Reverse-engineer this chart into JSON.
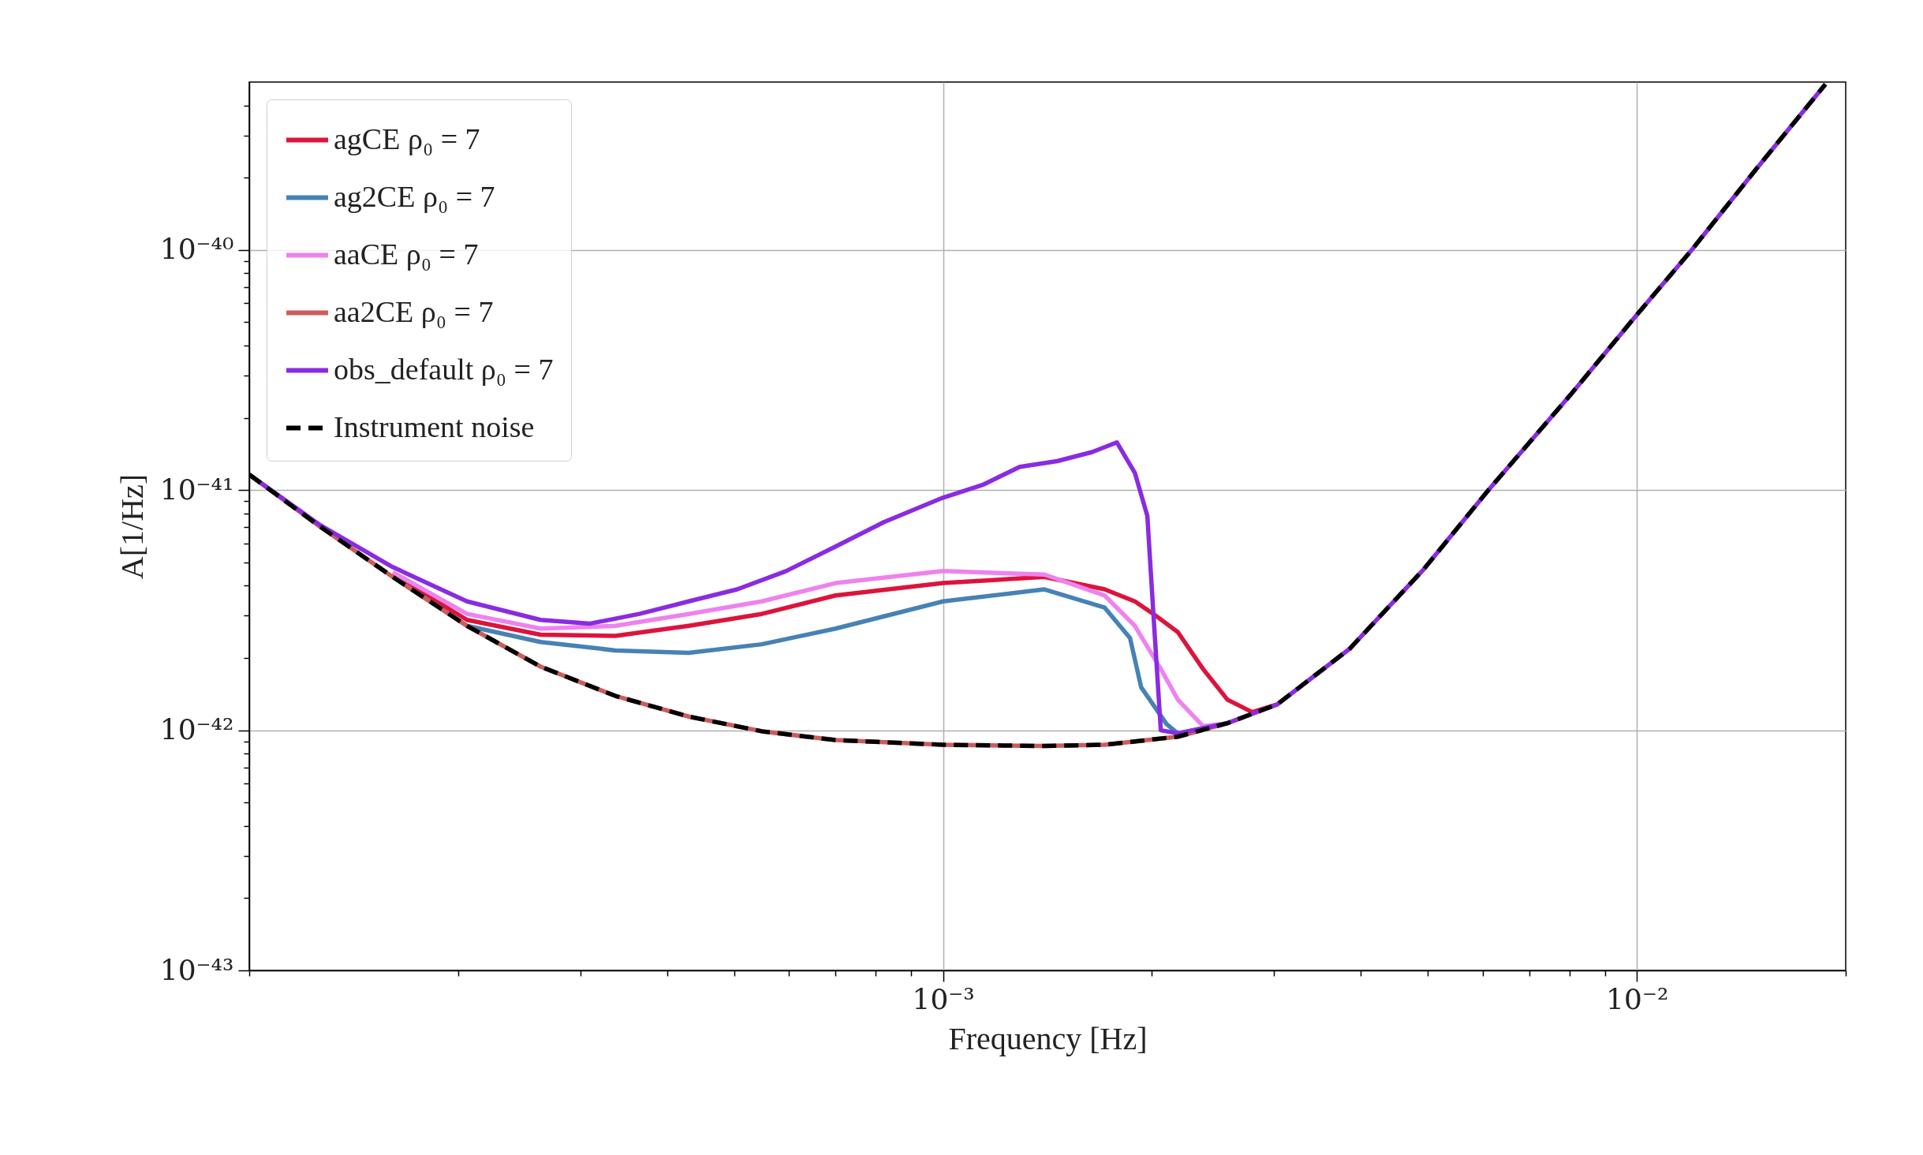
{
  "chart_data": {
    "type": "line",
    "xlabel": "Frequency [Hz]",
    "ylabel": "A[1/Hz]",
    "log": "xy",
    "grid": true,
    "legend": "top left",
    "xlim": [
      0.0001,
      0.02
    ],
    "ylim": [
      1e-43,
      5e-40
    ],
    "xticks": [
      {
        "value": 0.0001,
        "label": null
      },
      {
        "value": 0.0002,
        "label": null
      },
      {
        "value": 0.0003,
        "label": null
      },
      {
        "value": 0.0004,
        "label": null
      },
      {
        "value": 0.0005,
        "label": null
      },
      {
        "value": 0.0006,
        "label": null
      },
      {
        "value": 0.0007,
        "label": null
      },
      {
        "value": 0.0008,
        "label": null
      },
      {
        "value": 0.0009,
        "label": null
      },
      {
        "value": 0.001,
        "label": "10⁻³"
      },
      {
        "value": 0.002,
        "label": null
      },
      {
        "value": 0.003,
        "label": null
      },
      {
        "value": 0.004,
        "label": null
      },
      {
        "value": 0.005,
        "label": null
      },
      {
        "value": 0.006,
        "label": null
      },
      {
        "value": 0.007,
        "label": null
      },
      {
        "value": 0.008,
        "label": null
      },
      {
        "value": 0.009,
        "label": null
      },
      {
        "value": 0.01,
        "label": "10⁻²"
      },
      {
        "value": 0.02,
        "label": null
      }
    ],
    "yticks": [
      {
        "value": 1e-43,
        "label": "10⁻⁴³"
      },
      {
        "value": 2e-43,
        "label": null
      },
      {
        "value": 3e-43,
        "label": null
      },
      {
        "value": 4e-43,
        "label": null
      },
      {
        "value": 5e-43,
        "label": null
      },
      {
        "value": 6e-43,
        "label": null
      },
      {
        "value": 7e-43,
        "label": null
      },
      {
        "value": 8e-43,
        "label": null
      },
      {
        "value": 9e-43,
        "label": null
      },
      {
        "value": 1e-42,
        "label": "10⁻⁴²"
      },
      {
        "value": 2e-42,
        "label": null
      },
      {
        "value": 3e-42,
        "label": null
      },
      {
        "value": 4e-42,
        "label": null
      },
      {
        "value": 5e-42,
        "label": null
      },
      {
        "value": 6e-42,
        "label": null
      },
      {
        "value": 7e-42,
        "label": null
      },
      {
        "value": 8e-42,
        "label": null
      },
      {
        "value": 9e-42,
        "label": null
      },
      {
        "value": 1e-41,
        "label": "10⁻⁴¹"
      },
      {
        "value": 2e-41,
        "label": null
      },
      {
        "value": 3e-41,
        "label": null
      },
      {
        "value": 4e-41,
        "label": null
      },
      {
        "value": 5e-41,
        "label": null
      },
      {
        "value": 6e-41,
        "label": null
      },
      {
        "value": 7e-41,
        "label": null
      },
      {
        "value": 8e-41,
        "label": null
      },
      {
        "value": 9e-41,
        "label": null
      },
      {
        "value": 1e-40,
        "label": "10⁻⁴⁰"
      },
      {
        "value": 2e-40,
        "label": null
      },
      {
        "value": 3e-40,
        "label": null
      },
      {
        "value": 4e-40,
        "label": null
      }
    ],
    "x": [
      0.0001,
      0.000126,
      0.000161,
      0.000206,
      0.000263,
      0.000337,
      0.00043,
      0.000548,
      0.0007,
      0.001,
      0.0014,
      0.00171,
      0.00218,
      0.00257,
      0.00303,
      0.00386,
      0.00493,
      0.00611,
      0.00804,
      0.01,
      0.012,
      0.0148,
      0.0187
    ],
    "series": [
      {
        "name": "agCE ρ₀ = 7",
        "color": "#dc143c",
        "x": [
          0.000161,
          0.000206,
          0.000263,
          0.000337,
          0.00043,
          0.000548,
          0.0007,
          0.001,
          0.0014,
          0.00171,
          0.00189,
          0.00201,
          0.00218,
          0.00237,
          0.00257,
          0.00279,
          0.00303
        ],
        "values": [
          4.45e-42,
          2.88e-42,
          2.5e-42,
          2.47e-42,
          2.72e-42,
          3.05e-42,
          3.64e-42,
          4.1e-42,
          4.35e-42,
          3.86e-42,
          3.44e-42,
          3.05e-42,
          2.56e-42,
          1.8e-42,
          1.34e-42,
          1.19e-42,
          1.28e-42
        ]
      },
      {
        "name": "ag2CE ρ₀ = 7",
        "color": "#4682b4",
        "x": [
          0.000161,
          0.000206,
          0.000263,
          0.000337,
          0.00043,
          0.000548,
          0.0007,
          0.001,
          0.0014,
          0.00171,
          0.00186,
          0.00193,
          0.0021,
          0.00218,
          0.00257
        ],
        "values": [
          4.35e-42,
          2.72e-42,
          2.33e-42,
          2.15e-42,
          2.1e-42,
          2.28e-42,
          2.65e-42,
          3.44e-42,
          3.86e-42,
          3.24e-42,
          2.42e-42,
          1.51e-42,
          1.06e-42,
          9.7e-43,
          1.07e-42
        ]
      },
      {
        "name": "aaCE ρ₀ = 7",
        "color": "#ee82ee",
        "x": [
          0.000161,
          0.000206,
          0.000263,
          0.000337,
          0.00043,
          0.000548,
          0.0007,
          0.001,
          0.0014,
          0.00171,
          0.00189,
          0.00206,
          0.00218,
          0.00237,
          0.00257
        ],
        "values": [
          4.55e-42,
          3.05e-42,
          2.65e-42,
          2.72e-42,
          3.05e-42,
          3.44e-42,
          4.1e-42,
          4.6e-42,
          4.45e-42,
          3.64e-42,
          2.72e-42,
          1.8e-42,
          1.34e-42,
          1.04e-42,
          1.07e-42
        ]
      },
      {
        "name": "aa2CE ρ₀ = 7",
        "color": "#cd5c5c",
        "x": [
          0.0001,
          0.000126,
          0.000161,
          0.000206,
          0.000263,
          0.000337,
          0.00043,
          0.000548,
          0.0007,
          0.001,
          0.0014,
          0.00171,
          0.00218,
          0.00257
        ],
        "values": [
          1.16e-41,
          7.1e-42,
          4.35e-42,
          2.72e-42,
          1.84e-42,
          1.39e-42,
          1.14e-42,
          9.9e-43,
          9.1e-43,
          8.7e-43,
          8.6e-43,
          8.7e-43,
          9.4e-43,
          1.07e-42
        ]
      },
      {
        "name": "obs_default ρ₀ = 7",
        "color": "#8a2be2",
        "x": [
          0.0001,
          0.000126,
          0.000161,
          0.000206,
          0.000263,
          0.00031,
          0.000365,
          0.00043,
          0.000505,
          0.000594,
          0.0007,
          0.000822,
          0.001,
          0.00114,
          0.00129,
          0.00146,
          0.00164,
          0.00178,
          0.00189,
          0.00197,
          0.00201,
          0.00206,
          0.00218,
          0.00257,
          0.00303,
          0.00386,
          0.00493,
          0.00611,
          0.00804,
          0.01,
          0.012,
          0.0148,
          0.0187
        ],
        "values": [
          1.16e-41,
          7.2e-42,
          4.78e-42,
          3.44e-42,
          2.88e-42,
          2.78e-42,
          3.05e-42,
          3.44e-42,
          3.86e-42,
          4.6e-42,
          5.82e-42,
          7.36e-42,
          9.3e-42,
          1.05e-41,
          1.25e-41,
          1.32e-41,
          1.44e-41,
          1.58e-41,
          1.18e-41,
          7.8e-42,
          3.05e-42,
          1e-42,
          9.7e-43,
          1.07e-42,
          1.28e-42,
          2.19e-42,
          4.68e-42,
          1e-41,
          2.51e-41,
          5.37e-41,
          1e-40,
          2.14e-40,
          4.9e-40
        ]
      },
      {
        "name": "Instrument noise",
        "color": "#000000",
        "line_style": "dashed",
        "values": [
          1.16e-41,
          7.1e-42,
          4.35e-42,
          2.72e-42,
          1.84e-42,
          1.39e-42,
          1.14e-42,
          9.9e-43,
          9.1e-43,
          8.7e-43,
          8.6e-43,
          8.7e-43,
          9.4e-43,
          1.07e-42,
          1.28e-42,
          2.19e-42,
          4.68e-42,
          1e-41,
          2.51e-41,
          5.37e-41,
          1e-40,
          2.14e-40,
          4.9e-40
        ]
      }
    ]
  }
}
